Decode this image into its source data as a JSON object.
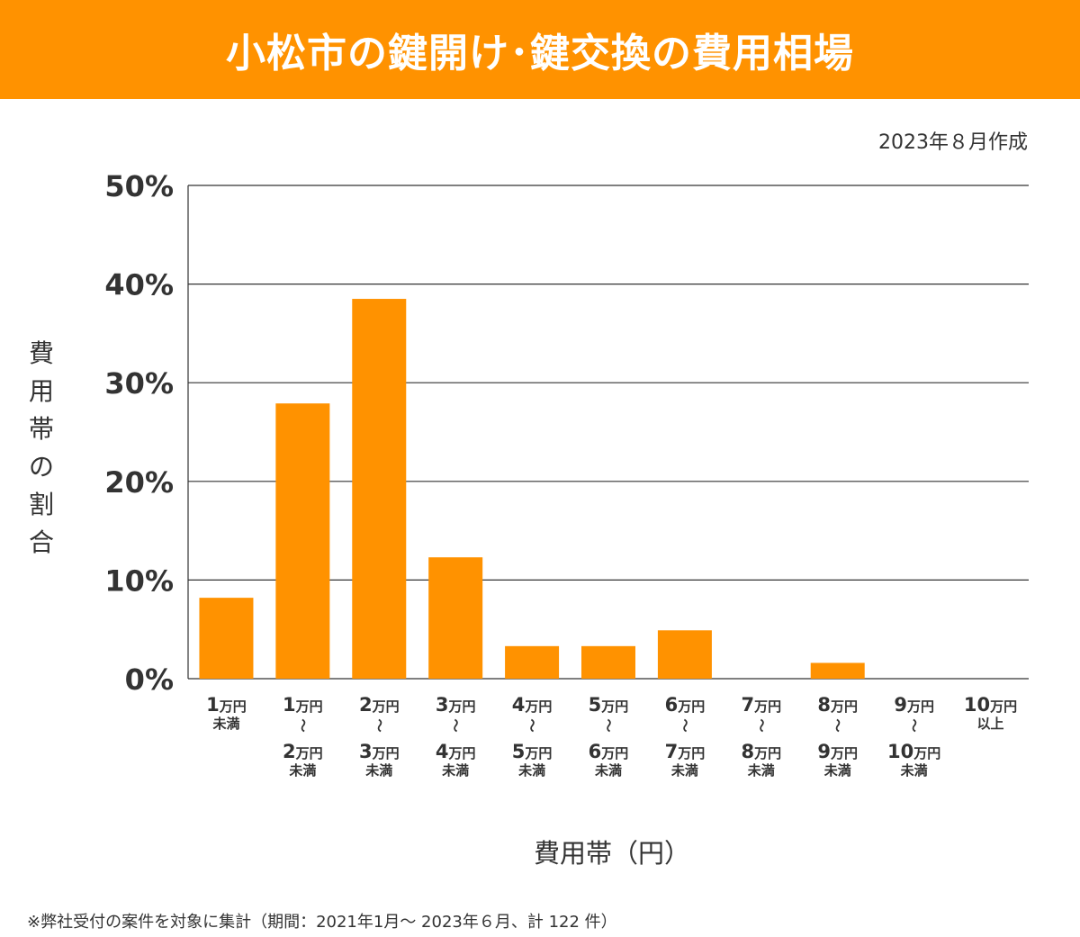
{
  "header": {
    "title": "小松市の鍵開け･鍵交換の費用相場"
  },
  "date_note": "2023年８月作成",
  "footnote": "※弊社受付の案件を対象に集計（期間：2021年1月～ 2023年６月、計 122 件）",
  "colors": {
    "accent": "#ff9200",
    "bar": "#ff9200",
    "text": "#333333",
    "grid": "#333333"
  },
  "chart_data": {
    "type": "bar",
    "title": "小松市の鍵開け･鍵交換の費用相場",
    "ylabel": "費用帯の割合",
    "ylabel_chars": [
      "費",
      "用",
      "帯",
      "の",
      "割",
      "合"
    ],
    "xlabel": "費用帯（円）",
    "ylim": [
      0,
      50
    ],
    "yticks": [
      0,
      10,
      20,
      30,
      40,
      50
    ],
    "ytick_labels": [
      "0%",
      "10%",
      "20%",
      "30%",
      "40%",
      "50%"
    ],
    "categories": [
      "1万円未満",
      "1万円～2万円未満",
      "2万円～3万円未満",
      "3万円～4万円未満",
      "4万円～5万円未満",
      "5万円～6万円未満",
      "6万円～7万円未満",
      "7万円～8万円未満",
      "8万円～9万円未満",
      "9万円～10万円未満",
      "10万円以上"
    ],
    "category_labels": [
      [
        {
          "num": "1",
          "unit": "万円"
        },
        {
          "sub": "未満"
        }
      ],
      [
        {
          "num": "1",
          "unit": "万円"
        },
        {
          "tilde": "～"
        },
        {
          "num": "2",
          "unit": "万円"
        },
        {
          "sub": "未満"
        }
      ],
      [
        {
          "num": "2",
          "unit": "万円"
        },
        {
          "tilde": "～"
        },
        {
          "num": "3",
          "unit": "万円"
        },
        {
          "sub": "未満"
        }
      ],
      [
        {
          "num": "3",
          "unit": "万円"
        },
        {
          "tilde": "～"
        },
        {
          "num": "4",
          "unit": "万円"
        },
        {
          "sub": "未満"
        }
      ],
      [
        {
          "num": "4",
          "unit": "万円"
        },
        {
          "tilde": "～"
        },
        {
          "num": "5",
          "unit": "万円"
        },
        {
          "sub": "未満"
        }
      ],
      [
        {
          "num": "5",
          "unit": "万円"
        },
        {
          "tilde": "～"
        },
        {
          "num": "6",
          "unit": "万円"
        },
        {
          "sub": "未満"
        }
      ],
      [
        {
          "num": "6",
          "unit": "万円"
        },
        {
          "tilde": "～"
        },
        {
          "num": "7",
          "unit": "万円"
        },
        {
          "sub": "未満"
        }
      ],
      [
        {
          "num": "7",
          "unit": "万円"
        },
        {
          "tilde": "～"
        },
        {
          "num": "8",
          "unit": "万円"
        },
        {
          "sub": "未満"
        }
      ],
      [
        {
          "num": "8",
          "unit": "万円"
        },
        {
          "tilde": "～"
        },
        {
          "num": "9",
          "unit": "万円"
        },
        {
          "sub": "未満"
        }
      ],
      [
        {
          "num": "9",
          "unit": "万円"
        },
        {
          "tilde": "～"
        },
        {
          "num": "10",
          "unit": "万円"
        },
        {
          "sub": "未満"
        }
      ],
      [
        {
          "num": "10",
          "unit": "万円"
        },
        {
          "sub": "以上"
        }
      ]
    ],
    "values": [
      8.2,
      27.9,
      38.5,
      12.3,
      3.3,
      3.3,
      4.9,
      0,
      1.6,
      0,
      0
    ],
    "grid": true,
    "legend": "none"
  }
}
